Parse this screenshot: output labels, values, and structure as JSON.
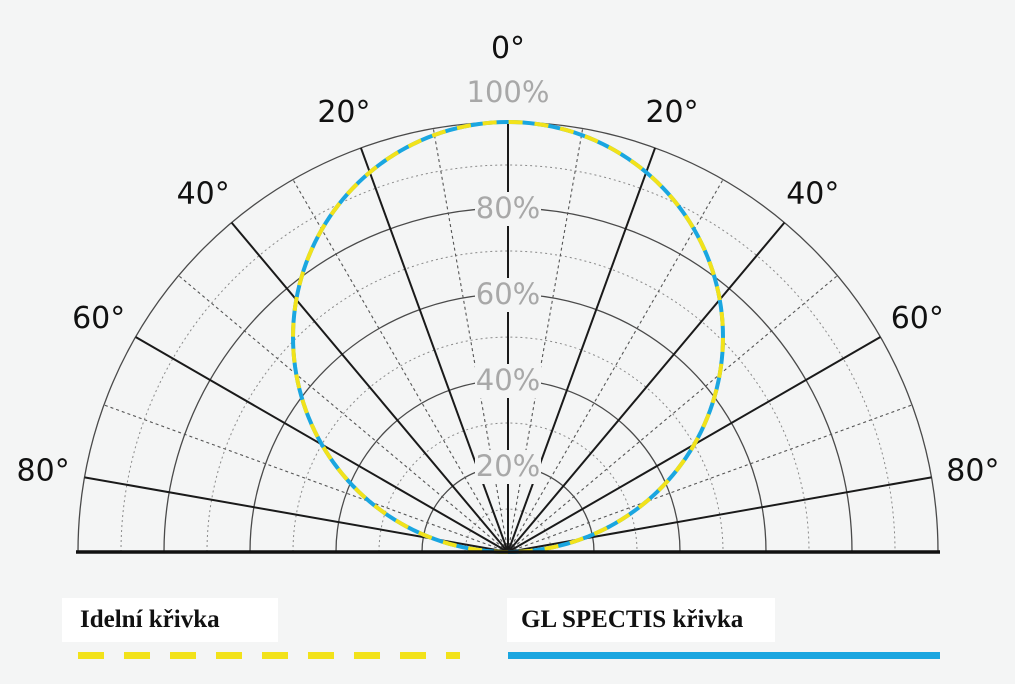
{
  "chart_data": {
    "type": "polar",
    "angle_labels": {
      "left": [
        "20°",
        "40°",
        "60°",
        "80°"
      ],
      "right": [
        "20°",
        "40°",
        "60°",
        "80°"
      ],
      "top": "0°"
    },
    "angle_ticks_deg": [
      0,
      20,
      40,
      60,
      80
    ],
    "radial_labels": [
      "20%",
      "40%",
      "60%",
      "80%",
      "100%"
    ],
    "radial_values_pct": [
      20,
      40,
      60,
      80,
      100
    ],
    "rlim": [
      0,
      100
    ],
    "angle_range_deg": [
      -90,
      90
    ],
    "grid": true,
    "series": [
      {
        "name": "Idelní křivka",
        "color": "#f2e21a",
        "style": "dashed",
        "shape": "cosine",
        "angles_deg": [
          -90,
          -80,
          -60,
          -40,
          -20,
          0,
          20,
          40,
          60,
          80,
          90
        ],
        "values_pct": [
          0,
          17.4,
          50,
          76.6,
          94,
          100,
          94,
          76.6,
          50,
          17.4,
          0
        ]
      },
      {
        "name": "GL SPECTIS křivka",
        "color": "#1aa6e0",
        "style": "solid",
        "shape": "cosine",
        "angles_deg": [
          -90,
          -80,
          -60,
          -40,
          -20,
          0,
          20,
          40,
          60,
          80,
          90
        ],
        "values_pct": [
          0,
          17.4,
          50,
          76.6,
          94,
          100,
          94,
          76.6,
          50,
          17.4,
          0
        ]
      }
    ]
  },
  "legend": {
    "ideal_label": "Idelní křivka",
    "gl_label": "GL SPECTIS křivka"
  }
}
